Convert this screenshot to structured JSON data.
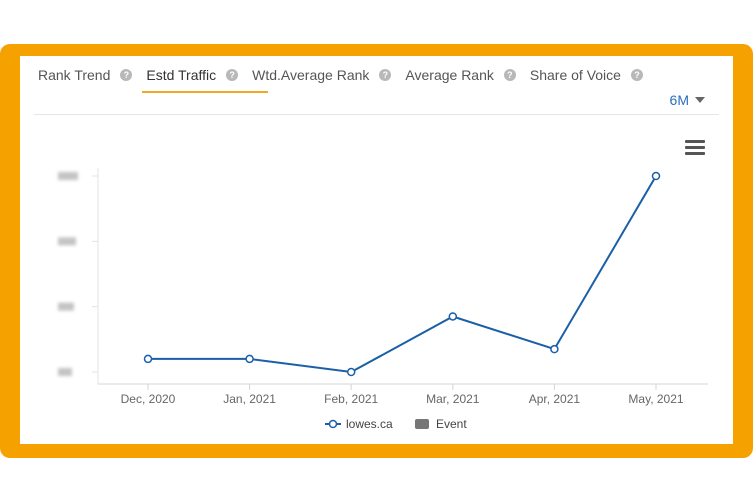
{
  "tabs": [
    {
      "label": "Rank Trend",
      "active": false
    },
    {
      "label": "Estd Traffic",
      "active": true
    },
    {
      "label": "Wtd.Average Rank",
      "active": false
    },
    {
      "label": "Average Rank",
      "active": false
    },
    {
      "label": "Share of Voice",
      "active": false
    }
  ],
  "range_selector": {
    "value": "6M"
  },
  "colors": {
    "frame": "#f5a100",
    "series": "#1a5fa8",
    "tab_underline": "#f5a623",
    "range_text": "#2a6fbb"
  },
  "chart_data": {
    "type": "line",
    "categories": [
      "Dec, 2020",
      "Jan, 2021",
      "Feb, 2021",
      "Mar, 2021",
      "Apr, 2021",
      "May, 2021"
    ],
    "series": [
      {
        "name": "lowes.ca",
        "values": [
          0.2,
          0.2,
          0.0,
          0.85,
          0.35,
          3.0
        ]
      }
    ],
    "ylim": [
      0,
      3
    ],
    "yticks_blurred": true,
    "legend": [
      {
        "label": "lowes.ca",
        "symbol": "line-marker"
      },
      {
        "label": "Event",
        "symbol": "square"
      }
    ],
    "legend_position": "bottom-center",
    "grid": false
  }
}
